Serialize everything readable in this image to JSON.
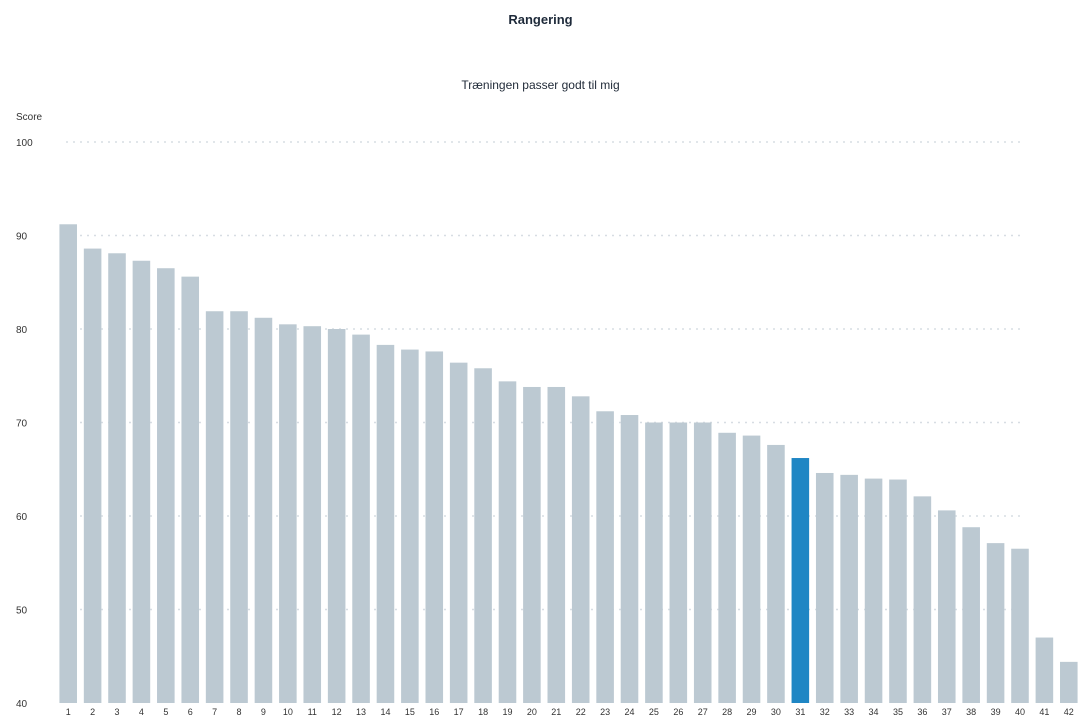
{
  "header": {
    "title": "Rangering",
    "subtitle": "Træningen passer godt til mig"
  },
  "chart_data": {
    "type": "bar",
    "title": "Rangering",
    "subtitle": "Træningen passer godt til mig",
    "ylabel": "Score",
    "xlabel": "",
    "ylim": [
      40,
      100
    ],
    "yticks": [
      40,
      50,
      60,
      70,
      80,
      90,
      100
    ],
    "grid": true,
    "categories": [
      "1",
      "2",
      "3",
      "4",
      "5",
      "6",
      "7",
      "8",
      "9",
      "10",
      "11",
      "12",
      "13",
      "14",
      "15",
      "16",
      "17",
      "18",
      "19",
      "20",
      "21",
      "22",
      "23",
      "24",
      "25",
      "26",
      "27",
      "28",
      "29",
      "30",
      "31",
      "32",
      "33",
      "34",
      "35",
      "36",
      "37",
      "38",
      "39",
      "40",
      "41",
      "42"
    ],
    "values": [
      91.2,
      88.6,
      88.1,
      87.3,
      86.5,
      85.6,
      81.9,
      81.9,
      81.2,
      80.5,
      80.3,
      80.0,
      79.4,
      78.3,
      77.8,
      77.6,
      76.4,
      75.8,
      74.4,
      73.8,
      73.8,
      72.8,
      71.2,
      70.8,
      70.0,
      70.0,
      70.0,
      68.9,
      68.6,
      67.6,
      66.2,
      64.6,
      64.4,
      64.0,
      63.9,
      62.1,
      60.6,
      58.8,
      57.1,
      56.5,
      47.0,
      44.4
    ],
    "highlight_index": 30,
    "colors": {
      "bar": "#bcc9d2",
      "highlight": "#1f86c4",
      "grid": "#d7dde3"
    }
  }
}
